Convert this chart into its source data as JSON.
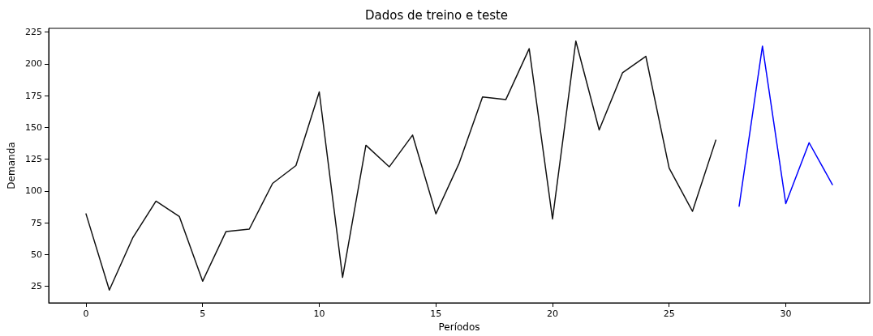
{
  "chart_data": {
    "type": "line",
    "title": "Dados de treino e teste",
    "xlabel": "Períodos",
    "ylabel": "Demanda",
    "series": [
      {
        "color": "#111111",
        "x": [
          0,
          1,
          2,
          3,
          4,
          5,
          6,
          7,
          8,
          9,
          10,
          11,
          12,
          13,
          14,
          15,
          16,
          17,
          18,
          19,
          20,
          21,
          22,
          23,
          24,
          25,
          26,
          27
        ],
        "values": [
          82,
          22,
          63,
          92,
          80,
          29,
          68,
          70,
          106,
          120,
          178,
          32,
          136,
          119,
          144,
          82,
          122,
          174,
          172,
          212,
          78,
          218,
          148,
          193,
          206,
          118,
          84,
          140
        ]
      },
      {
        "color": "#0000ff",
        "x": [
          28,
          29,
          30,
          31,
          32
        ],
        "values": [
          88,
          214,
          90,
          138,
          105
        ]
      }
    ],
    "xlim": [
      -1.6,
      33.6
    ],
    "xticks": [
      0,
      5,
      10,
      15,
      20,
      25,
      30
    ],
    "ylim": [
      12,
      228
    ],
    "yticks": [
      25,
      50,
      75,
      100,
      125,
      150,
      175,
      200,
      225
    ],
    "grid": false,
    "marker": "none",
    "line_style": "solid"
  }
}
